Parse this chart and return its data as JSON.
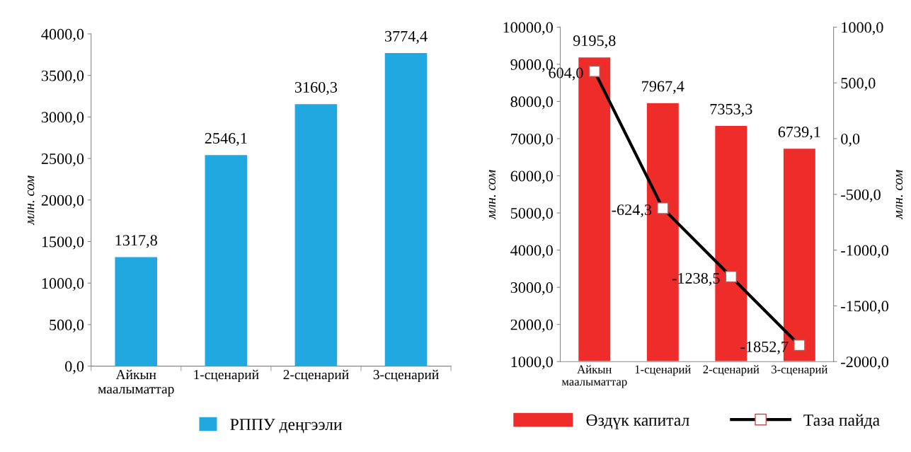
{
  "chart_data": [
    {
      "type": "bar",
      "ylabel": "млн. сом",
      "categories": [
        "Айкын\nмаалыматтар",
        "1-сценарий",
        "2-сценарий",
        "3-сценарий"
      ],
      "ylim": [
        0,
        4000
      ],
      "yticks": [
        {
          "value": 0,
          "label": "0,0"
        },
        {
          "value": 500,
          "label": "500,0"
        },
        {
          "value": 1000,
          "label": "1000,0"
        },
        {
          "value": 1500,
          "label": "1500,0"
        },
        {
          "value": 2000,
          "label": "2000,0"
        },
        {
          "value": 2500,
          "label": "2500,0"
        },
        {
          "value": 3000,
          "label": "3000,0"
        },
        {
          "value": 3500,
          "label": "3500,0"
        },
        {
          "value": 4000,
          "label": "4000,0"
        }
      ],
      "grid": false,
      "legend": "bottom",
      "series": [
        {
          "name": "РППУ деңгээли",
          "color": "#21a8e0",
          "values": [
            1317.8,
            2546.1,
            3160.3,
            3774.4
          ],
          "value_labels": [
            "1317,8",
            "2546,1",
            "3160,3",
            "3774,4"
          ]
        }
      ]
    },
    {
      "type": "bar",
      "ylabel": "млн. сом",
      "y2label": "млн. сом",
      "categories": [
        "Айкын\nмаалыматтар",
        "1-сценарий",
        "2-сценарий",
        "3-сценарий"
      ],
      "ylim": [
        1000,
        10000
      ],
      "yticks": [
        {
          "value": 1000,
          "label": "1000,0"
        },
        {
          "value": 2000,
          "label": "2000,0"
        },
        {
          "value": 3000,
          "label": "3000,0"
        },
        {
          "value": 4000,
          "label": "4000,0"
        },
        {
          "value": 5000,
          "label": "5000,0"
        },
        {
          "value": 6000,
          "label": "6000,0"
        },
        {
          "value": 7000,
          "label": "7000,0"
        },
        {
          "value": 8000,
          "label": "8000,0"
        },
        {
          "value": 9000,
          "label": "9000,0"
        },
        {
          "value": 10000,
          "label": "10000,0"
        }
      ],
      "y2lim": [
        -2000,
        1000
      ],
      "y2ticks": [
        {
          "value": -2000,
          "label": "-2000,0"
        },
        {
          "value": -1500,
          "label": "-1500,0"
        },
        {
          "value": -1000,
          "label": "-1000,0"
        },
        {
          "value": -500,
          "label": "-500,0"
        },
        {
          "value": 0,
          "label": "0,0"
        },
        {
          "value": 500,
          "label": "500,0"
        },
        {
          "value": 1000,
          "label": "1000,0"
        }
      ],
      "grid": false,
      "legend": "bottom",
      "series": [
        {
          "name": "Өздүк капитал",
          "type": "bar",
          "color": "#ee2d2b",
          "values": [
            9195.8,
            7967.4,
            7353.3,
            6739.1
          ],
          "value_labels": [
            "9195,8",
            "7967,4",
            "7353,3",
            "6739,1"
          ]
        },
        {
          "name": "Таза пайда",
          "type": "line",
          "axis": "y2",
          "color": "#000000",
          "marker": "square",
          "line_style": "solid",
          "values": [
            604.0,
            -624.3,
            -1238.5,
            -1852.7
          ],
          "value_labels": [
            "604,0",
            "-624,3",
            "-1238,5",
            "-1852,7"
          ]
        }
      ]
    }
  ]
}
